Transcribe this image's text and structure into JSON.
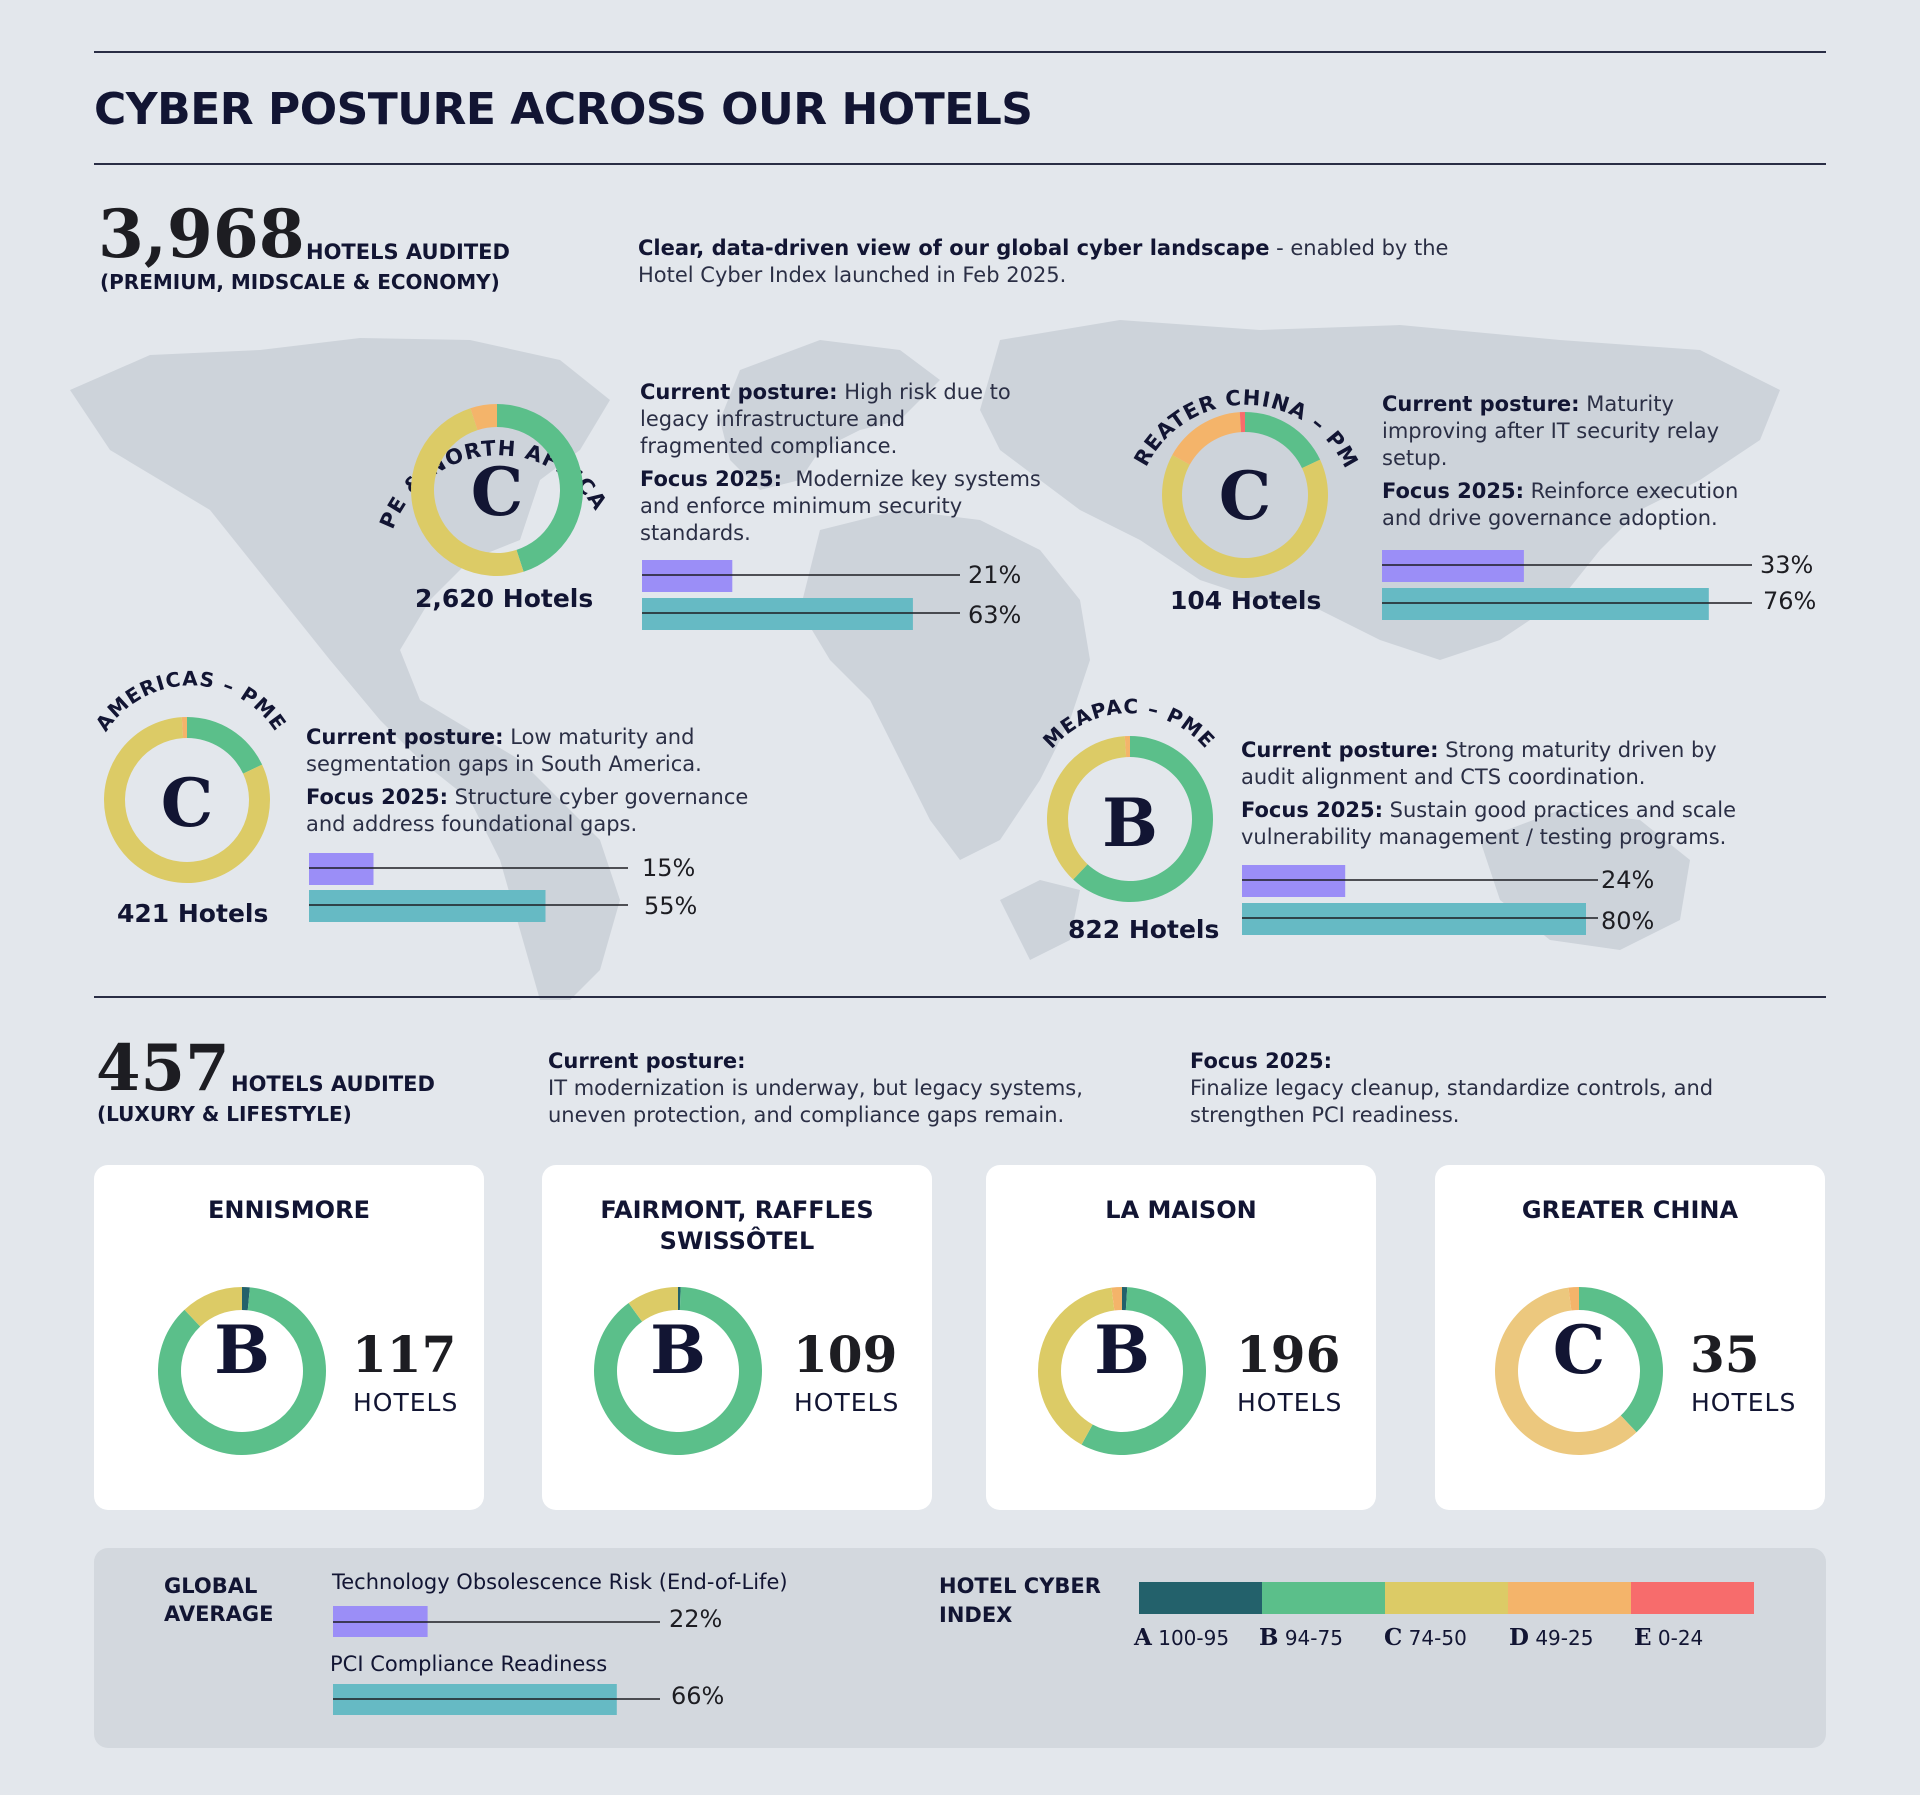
{
  "title": "CYBER POSTURE ACROSS OUR HOTELS",
  "colors": {
    "obsolescence": "#9b8ef7",
    "pci": "#66bac4",
    "A": "#23616b",
    "B": "#5bbf8a",
    "C": "#dccb66",
    "D": "#f4b46a",
    "E": "#f76c6c",
    "C_light": "#ecc87e"
  },
  "top_summary": {
    "number": "3,968",
    "label": "HOTELS AUDITED",
    "sublabel": "(PREMIUM, MIDSCALE & ECONOMY)",
    "intro_bold": "Clear, data-driven view of our global cyber landscape",
    "intro_rest1": " - enabled by the",
    "intro_rest2": "Hotel Cyber Index launched in Feb 2025."
  },
  "regions": {
    "europe": {
      "name": "EUROPE & NORTH AFRICA – PME",
      "grade": "C",
      "hotels": "2,620 Hotels",
      "posture_label": "Current posture:",
      "posture_lines": [
        " High risk due to",
        "legacy infrastructure and",
        "fragmented compliance."
      ],
      "focus_label": "Focus 2025:",
      "focus_lines": [
        "  Modernize key systems",
        "and enforce minimum security",
        "standards."
      ],
      "obsolescence": "21%",
      "pci": "63%"
    },
    "china": {
      "name": "GREATER CHINA – PME",
      "grade": "C",
      "hotels": "104 Hotels",
      "posture_label": "Current posture:",
      "posture_lines": [
        " Maturity",
        "improving after IT security relay",
        "setup."
      ],
      "focus_label": "Focus 2025:",
      "focus_lines": [
        " Reinforce execution",
        "and drive governance adoption."
      ],
      "obsolescence": "33%",
      "pci": "76%"
    },
    "americas": {
      "name": "AMERICAS – PME",
      "grade": "C",
      "hotels": "421 Hotels",
      "posture_label": "Current posture:",
      "posture_lines": [
        " Low maturity and",
        "segmentation gaps in South America."
      ],
      "focus_label": "Focus 2025:",
      "focus_lines": [
        " Structure cyber governance",
        "and address foundational gaps."
      ],
      "obsolescence": "15%",
      "pci": "55%"
    },
    "meapac": {
      "name": "MEAPAC – PME",
      "grade": "B",
      "hotels": "822 Hotels",
      "posture_label": "Current posture:",
      "posture_lines": [
        " Strong maturity driven by",
        "audit alignment and CTS coordination."
      ],
      "focus_label": "Focus 2025:",
      "focus_lines": [
        " Sustain good practices and scale",
        "vulnerability management / testing programs."
      ],
      "obsolescence": "24%",
      "pci": "80%"
    }
  },
  "luxury": {
    "number": "457",
    "label": "HOTELS AUDITED",
    "sublabel": "(LUXURY & LIFESTYLE)",
    "posture_label": "Current posture:",
    "posture_lines": [
      "IT modernization is underway, but legacy systems,",
      "uneven protection, and compliance gaps remain."
    ],
    "focus_label": "Focus 2025:",
    "focus_lines": [
      "Finalize legacy cleanup, standardize controls, and",
      "strengthen PCI readiness."
    ]
  },
  "brands": [
    {
      "title_lines": [
        "ENNISMORE"
      ],
      "grade": "B",
      "count": "117",
      "unit": "HOTELS"
    },
    {
      "title_lines": [
        "FAIRMONT, RAFFLES",
        "SWISSÔTEL"
      ],
      "grade": "B",
      "count": "109",
      "unit": "HOTELS"
    },
    {
      "title_lines": [
        "LA MAISON"
      ],
      "grade": "B",
      "count": "196",
      "unit": "HOTELS"
    },
    {
      "title_lines": [
        "GREATER CHINA"
      ],
      "grade": "C",
      "count": "35",
      "unit": "HOTELS"
    }
  ],
  "legend": {
    "global_lines": [
      "GLOBAL",
      "AVERAGE"
    ],
    "obsolescence_label": "Technology Obsolescence Risk (End-of-Life)",
    "obsolescence_value": "22%",
    "pci_label": "PCI Compliance Readiness",
    "pci_value": "66%",
    "index_lines": [
      "HOTEL CYBER",
      "INDEX"
    ],
    "grades": [
      {
        "letter": "A",
        "range": "100-95"
      },
      {
        "letter": "B",
        "range": "94-75"
      },
      {
        "letter": "C",
        "range": "74-50"
      },
      {
        "letter": "D",
        "range": "49-25"
      },
      {
        "letter": "E",
        "range": "0-24"
      }
    ]
  },
  "chart_data": [
    {
      "type": "pie",
      "title": "EUROPE & NORTH AFRICA – PME",
      "categories": [
        "B",
        "C",
        "D"
      ],
      "values": [
        45,
        50,
        5
      ]
    },
    {
      "type": "pie",
      "title": "GREATER CHINA – PME",
      "categories": [
        "B",
        "C",
        "D",
        "E"
      ],
      "values": [
        18,
        65,
        16,
        1
      ]
    },
    {
      "type": "pie",
      "title": "AMERICAS – PME",
      "categories": [
        "B",
        "C",
        "D"
      ],
      "values": [
        18,
        81,
        1
      ]
    },
    {
      "type": "pie",
      "title": "MEAPAC – PME",
      "categories": [
        "B",
        "C",
        "D"
      ],
      "values": [
        62,
        37,
        1
      ]
    },
    {
      "type": "pie",
      "title": "ENNISMORE",
      "categories": [
        "A",
        "B",
        "C"
      ],
      "values": [
        1.5,
        86.5,
        12
      ]
    },
    {
      "type": "pie",
      "title": "FAIRMONT, RAFFLES SWISSÔTEL",
      "categories": [
        "A",
        "B",
        "C"
      ],
      "values": [
        0.5,
        89.5,
        10
      ]
    },
    {
      "type": "pie",
      "title": "LA MAISON",
      "categories": [
        "A",
        "B",
        "C",
        "D"
      ],
      "values": [
        1,
        57,
        40,
        2
      ]
    },
    {
      "type": "pie",
      "title": "GREATER CHINA",
      "categories": [
        "B",
        "C",
        "D"
      ],
      "values": [
        38,
        60,
        2
      ]
    },
    {
      "type": "bar",
      "title": "Technology Obsolescence Risk (End-of-Life)",
      "categories": [
        "EUROPE & NORTH AFRICA – PME",
        "GREATER CHINA – PME",
        "AMERICAS – PME",
        "MEAPAC – PME",
        "GLOBAL AVERAGE"
      ],
      "values": [
        21,
        33,
        15,
        24,
        22
      ]
    },
    {
      "type": "bar",
      "title": "PCI Compliance Readiness",
      "categories": [
        "EUROPE & NORTH AFRICA – PME",
        "GREATER CHINA – PME",
        "AMERICAS – PME",
        "MEAPAC – PME",
        "GLOBAL AVERAGE"
      ],
      "values": [
        63,
        76,
        55,
        80,
        66
      ]
    }
  ]
}
